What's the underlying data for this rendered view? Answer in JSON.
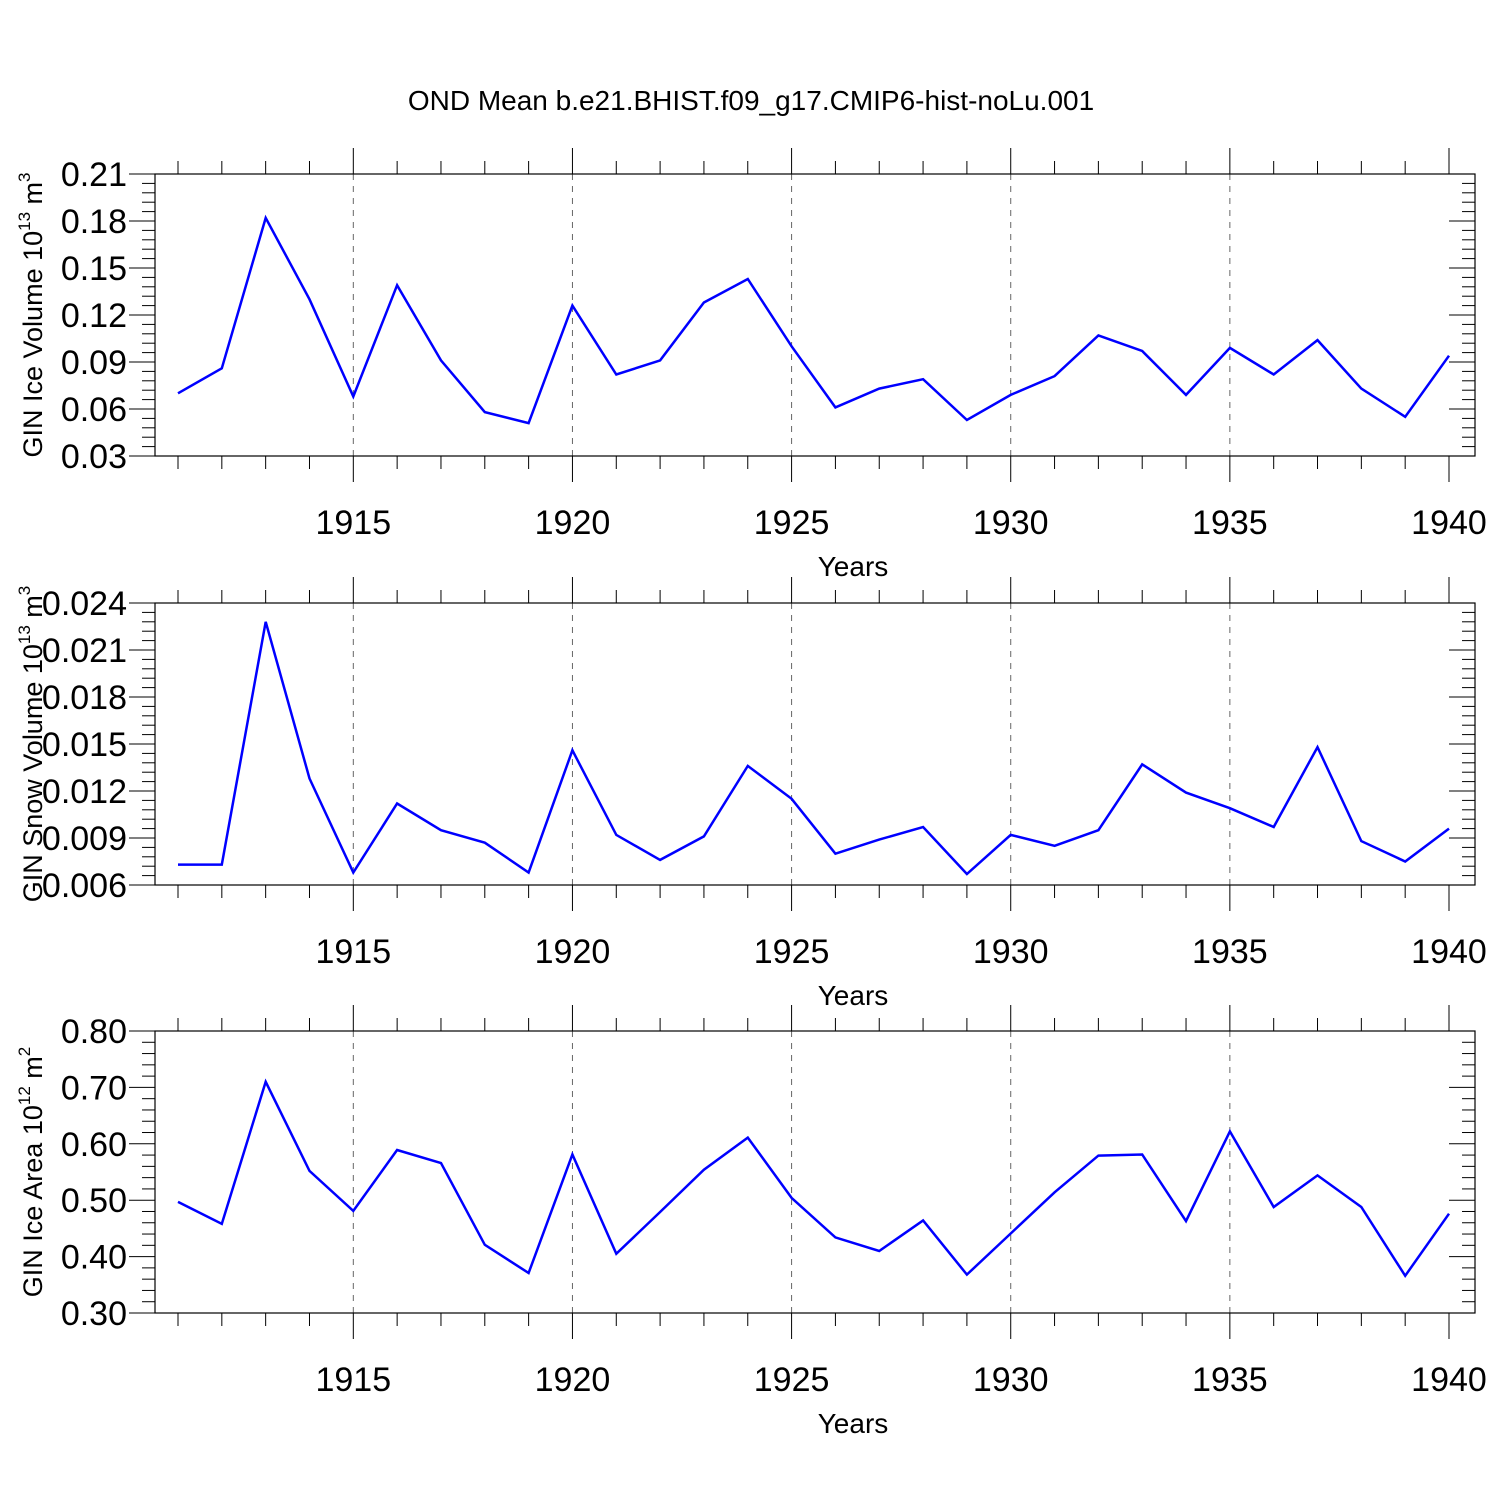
{
  "figure": {
    "title": "OND Mean b.e21.BHIST.f09_g17.CMIP6-hist-noLu.001",
    "line_color": "#0000ff",
    "axis_color": "#000000",
    "grid_color": "#666666"
  },
  "chart_data": [
    {
      "type": "line",
      "ylabel": "GIN Ice Volume 10",
      "ylabel_exp": "13",
      "ylabel_unit": " m",
      "ylabel_unit_exp": "3",
      "xlabel": "Years",
      "xlim": [
        1911,
        1940
      ],
      "ylim": [
        0.03,
        0.21
      ],
      "yticks": [
        "0.03",
        "0.06",
        "0.09",
        "0.12",
        "0.15",
        "0.18",
        "0.21"
      ],
      "xticks": [
        "1915",
        "1920",
        "1925",
        "1930",
        "1935",
        "1940"
      ],
      "grid": "vertical dashed at major x ticks",
      "series": [
        {
          "x": [
            1911,
            1912,
            1913,
            1914,
            1915,
            1916,
            1917,
            1918,
            1919,
            1920,
            1921,
            1922,
            1923,
            1924,
            1925,
            1926,
            1927,
            1928,
            1929,
            1930,
            1931,
            1932,
            1933,
            1934,
            1935,
            1936,
            1937,
            1938,
            1939,
            1940
          ],
          "values": [
            0.07,
            0.086,
            0.182,
            0.13,
            0.068,
            0.139,
            0.091,
            0.058,
            0.051,
            0.126,
            0.082,
            0.091,
            0.128,
            0.143,
            0.1,
            0.061,
            0.073,
            0.079,
            0.053,
            0.069,
            0.081,
            0.107,
            0.097,
            0.069,
            0.099,
            0.082,
            0.104,
            0.073,
            0.055,
            0.094
          ]
        }
      ]
    },
    {
      "type": "line",
      "ylabel": "GIN Snow Volume 10",
      "ylabel_exp": "13",
      "ylabel_unit": " m",
      "ylabel_unit_exp": "3",
      "xlabel": "Years",
      "xlim": [
        1911,
        1940
      ],
      "ylim": [
        0.006,
        0.024
      ],
      "yticks": [
        "0.006",
        "0.009",
        "0.012",
        "0.015",
        "0.018",
        "0.021",
        "0.024"
      ],
      "xticks": [
        "1915",
        "1920",
        "1925",
        "1930",
        "1935",
        "1940"
      ],
      "grid": "vertical dashed at major x ticks",
      "series": [
        {
          "x": [
            1911,
            1912,
            1913,
            1914,
            1915,
            1916,
            1917,
            1918,
            1919,
            1920,
            1921,
            1922,
            1923,
            1924,
            1925,
            1926,
            1927,
            1928,
            1929,
            1930,
            1931,
            1932,
            1933,
            1934,
            1935,
            1936,
            1937,
            1938,
            1939,
            1940
          ],
          "values": [
            0.0073,
            0.0073,
            0.0228,
            0.0128,
            0.0068,
            0.0112,
            0.0095,
            0.0087,
            0.0068,
            0.0146,
            0.0092,
            0.0076,
            0.0091,
            0.0136,
            0.0115,
            0.008,
            0.0089,
            0.0097,
            0.0067,
            0.0092,
            0.0085,
            0.0095,
            0.0137,
            0.0119,
            0.0109,
            0.0097,
            0.0148,
            0.0088,
            0.0075,
            0.0096
          ]
        }
      ]
    },
    {
      "type": "line",
      "ylabel": "GIN Ice Area 10",
      "ylabel_exp": "12",
      "ylabel_unit": " m",
      "ylabel_unit_exp": "2",
      "xlabel": "Years",
      "xlim": [
        1911,
        1940
      ],
      "ylim": [
        0.3,
        0.8
      ],
      "yticks": [
        "0.30",
        "0.40",
        "0.50",
        "0.60",
        "0.70",
        "0.80"
      ],
      "xticks": [
        "1915",
        "1920",
        "1925",
        "1930",
        "1935",
        "1940"
      ],
      "grid": "vertical dashed at major x ticks",
      "series": [
        {
          "x": [
            1911,
            1912,
            1913,
            1914,
            1915,
            1916,
            1917,
            1918,
            1919,
            1920,
            1921,
            1922,
            1923,
            1924,
            1925,
            1926,
            1927,
            1928,
            1929,
            1930,
            1931,
            1932,
            1933,
            1934,
            1935,
            1936,
            1937,
            1938,
            1939,
            1940
          ],
          "values": [
            0.497,
            0.458,
            0.71,
            0.552,
            0.481,
            0.589,
            0.566,
            0.421,
            0.371,
            0.581,
            0.405,
            0.479,
            0.554,
            0.611,
            0.504,
            0.434,
            0.41,
            0.464,
            0.368,
            0.441,
            0.514,
            0.579,
            0.581,
            0.463,
            0.622,
            0.488,
            0.544,
            0.488,
            0.366,
            0.476
          ]
        }
      ]
    }
  ]
}
